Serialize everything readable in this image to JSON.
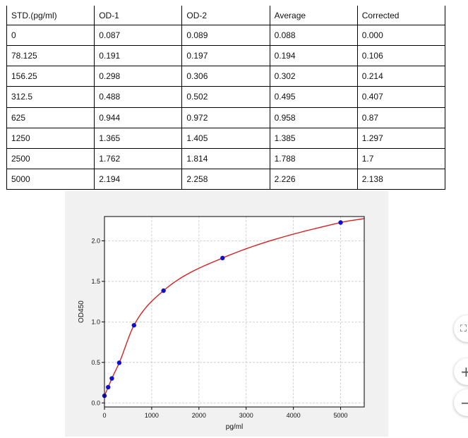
{
  "table": {
    "headers": [
      "STD.(pg/ml)",
      "OD-1",
      "OD-2",
      "Average",
      "Corrected"
    ],
    "rows": [
      [
        "0",
        "0.087",
        "0.089",
        "0.088",
        "0.000"
      ],
      [
        "78.125",
        "0.191",
        "0.197",
        "0.194",
        "0.106"
      ],
      [
        "156.25",
        "0.298",
        "0.306",
        "0.302",
        "0.214"
      ],
      [
        "312.5",
        "0.488",
        "0.502",
        "0.495",
        "0.407"
      ],
      [
        "625",
        "0.944",
        "0.972",
        "0.958",
        "0.87"
      ],
      [
        "1250",
        "1.365",
        "1.405",
        "1.385",
        "1.297"
      ],
      [
        "2500",
        "1.762",
        "1.814",
        "1.788",
        "1.7"
      ],
      [
        "5000",
        "2.194",
        "2.258",
        "2.226",
        "2.138"
      ]
    ]
  },
  "chart_data": {
    "type": "scatter",
    "xlabel": "pg/ml",
    "ylabel": "OD450",
    "xlim": [
      0,
      5500
    ],
    "ylim": [
      -0.05,
      2.3
    ],
    "xticks": [
      0,
      1000,
      2000,
      3000,
      4000,
      5000
    ],
    "yticks": [
      0.0,
      0.5,
      1.0,
      1.5,
      2.0
    ],
    "grid": true,
    "points": [
      {
        "x": 0,
        "y": 0.088
      },
      {
        "x": 78.125,
        "y": 0.194
      },
      {
        "x": 156.25,
        "y": 0.302
      },
      {
        "x": 312.5,
        "y": 0.495
      },
      {
        "x": 625,
        "y": 0.958
      },
      {
        "x": 1250,
        "y": 1.385
      },
      {
        "x": 2500,
        "y": 1.788
      },
      {
        "x": 5000,
        "y": 2.226
      }
    ],
    "point_color": "#1010cc",
    "curve_color": "#d62020"
  },
  "controls": {
    "fit_icon": "⛶",
    "zoom_in_icon": "+",
    "zoom_out_icon": "−"
  }
}
